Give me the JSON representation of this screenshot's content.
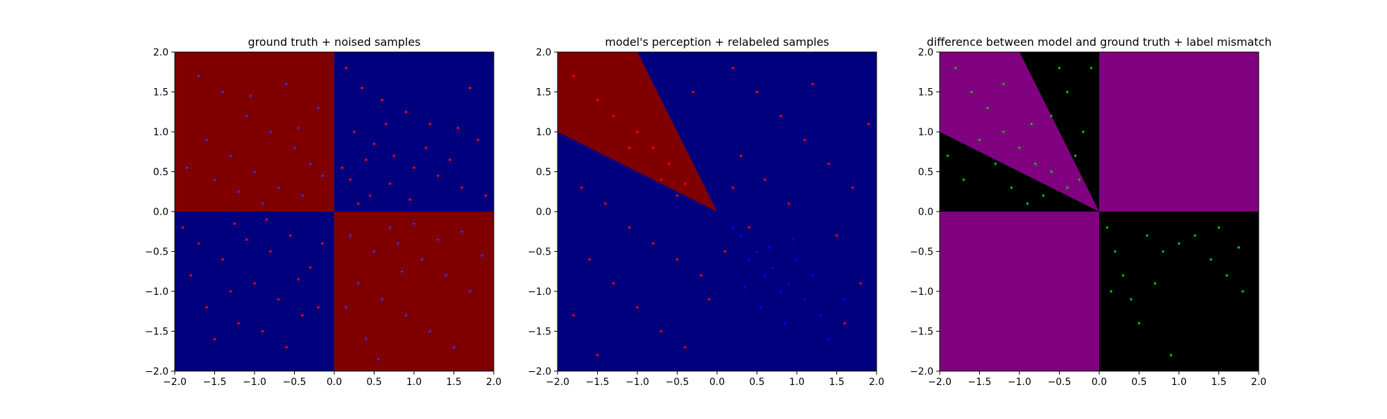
{
  "chart_data": [
    {
      "type": "scatter",
      "title": "ground truth + noised samples",
      "xlabel": "",
      "ylabel": "",
      "xlim": [
        -2.0,
        2.0
      ],
      "ylim": [
        -2.0,
        2.0
      ],
      "xticks": [
        "−2.0",
        "−1.5",
        "−1.0",
        "−0.5",
        "0.0",
        "0.5",
        "1.0",
        "1.5",
        "2.0"
      ],
      "yticks": [
        "−2.0",
        "−1.5",
        "−1.0",
        "−0.5",
        "0.0",
        "0.5",
        "1.0",
        "1.5",
        "2.0"
      ],
      "tick_values": [
        -2.0,
        -1.5,
        -1.0,
        -0.5,
        0.0,
        0.5,
        1.0,
        1.5,
        2.0
      ],
      "background_regions": [
        {
          "name": "quadrant-top-left",
          "polygon": [
            [
              -2,
              0
            ],
            [
              0,
              0
            ],
            [
              0,
              2
            ],
            [
              -2,
              2
            ]
          ],
          "color": "#800000"
        },
        {
          "name": "quadrant-top-right",
          "polygon": [
            [
              0,
              0
            ],
            [
              2,
              0
            ],
            [
              2,
              2
            ],
            [
              0,
              2
            ]
          ],
          "color": "#00007f"
        },
        {
          "name": "quadrant-bottom-left",
          "polygon": [
            [
              -2,
              -2
            ],
            [
              0,
              -2
            ],
            [
              0,
              0
            ],
            [
              -2,
              0
            ]
          ],
          "color": "#00007f"
        },
        {
          "name": "quadrant-bottom-right",
          "polygon": [
            [
              0,
              -2
            ],
            [
              2,
              -2
            ],
            [
              2,
              0
            ],
            [
              0,
              0
            ]
          ],
          "color": "#800000"
        }
      ],
      "series": [
        {
          "color": "#ff0000",
          "points": [
            [
              0.15,
              1.8
            ],
            [
              0.35,
              1.55
            ],
            [
              0.6,
              1.4
            ],
            [
              0.9,
              1.25
            ],
            [
              1.2,
              1.1
            ],
            [
              1.55,
              1.05
            ],
            [
              1.8,
              0.9
            ],
            [
              0.25,
              1.0
            ],
            [
              0.5,
              0.85
            ],
            [
              0.75,
              0.7
            ],
            [
              1.0,
              0.55
            ],
            [
              1.3,
              0.45
            ],
            [
              1.6,
              0.3
            ],
            [
              1.9,
              0.2
            ],
            [
              0.2,
              0.4
            ],
            [
              0.45,
              0.2
            ],
            [
              0.7,
              0.35
            ],
            [
              0.95,
              0.15
            ],
            [
              1.15,
              0.8
            ],
            [
              1.45,
              0.65
            ],
            [
              0.4,
              0.65
            ],
            [
              0.1,
              0.55
            ],
            [
              0.65,
              1.1
            ],
            [
              1.7,
              1.55
            ],
            [
              0.3,
              0.1
            ],
            [
              -1.7,
              -0.4
            ],
            [
              -1.4,
              -0.6
            ],
            [
              -1.1,
              -0.35
            ],
            [
              -0.8,
              -0.5
            ],
            [
              -0.55,
              -0.3
            ],
            [
              -0.3,
              -0.7
            ],
            [
              -1.6,
              -1.2
            ],
            [
              -1.3,
              -1.0
            ],
            [
              -1.0,
              -0.9
            ],
            [
              -0.7,
              -1.1
            ],
            [
              -0.4,
              -1.3
            ],
            [
              -1.5,
              -1.6
            ],
            [
              -1.2,
              -1.4
            ],
            [
              -0.9,
              -1.5
            ],
            [
              -0.6,
              -1.7
            ],
            [
              -0.2,
              -1.2
            ],
            [
              -1.8,
              -0.8
            ],
            [
              -0.15,
              -0.4
            ],
            [
              -0.45,
              -0.85
            ],
            [
              -1.9,
              -0.2
            ],
            [
              -1.25,
              -0.15
            ],
            [
              -0.85,
              -0.1
            ]
          ]
        },
        {
          "color": "#3030ff",
          "points": [
            [
              -1.7,
              1.7
            ],
            [
              -1.4,
              1.5
            ],
            [
              -1.1,
              1.2
            ],
            [
              -0.8,
              1.0
            ],
            [
              -0.5,
              0.8
            ],
            [
              -0.3,
              0.6
            ],
            [
              -1.6,
              0.9
            ],
            [
              -1.3,
              0.7
            ],
            [
              -1.0,
              0.5
            ],
            [
              -0.7,
              0.3
            ],
            [
              -0.4,
              0.2
            ],
            [
              -0.2,
              1.3
            ],
            [
              -0.6,
              1.6
            ],
            [
              -0.9,
              0.1
            ],
            [
              -1.2,
              0.25
            ],
            [
              -1.5,
              0.4
            ],
            [
              -1.85,
              0.55
            ],
            [
              -0.15,
              0.45
            ],
            [
              -0.45,
              1.05
            ],
            [
              -1.05,
              1.45
            ],
            [
              0.2,
              -0.3
            ],
            [
              0.5,
              -0.5
            ],
            [
              0.8,
              -0.4
            ],
            [
              1.1,
              -0.6
            ],
            [
              1.4,
              -0.8
            ],
            [
              1.7,
              -1.0
            ],
            [
              0.3,
              -0.9
            ],
            [
              0.6,
              -1.1
            ],
            [
              0.9,
              -1.3
            ],
            [
              1.2,
              -1.5
            ],
            [
              1.5,
              -1.7
            ],
            [
              0.4,
              -1.6
            ],
            [
              0.7,
              -0.2
            ],
            [
              1.0,
              -0.15
            ],
            [
              1.3,
              -0.35
            ],
            [
              1.6,
              -0.25
            ],
            [
              0.15,
              -1.2
            ],
            [
              0.85,
              -0.75
            ],
            [
              1.85,
              -0.55
            ],
            [
              0.55,
              -1.85
            ]
          ]
        }
      ]
    },
    {
      "type": "scatter",
      "title": "model's perception + relabeled samples",
      "xlabel": "",
      "ylabel": "",
      "xlim": [
        -2.0,
        2.0
      ],
      "ylim": [
        -2.0,
        2.0
      ],
      "xticks": [
        "−2.0",
        "−1.5",
        "−1.0",
        "−0.5",
        "0.0",
        "0.5",
        "1.0",
        "1.5",
        "2.0"
      ],
      "yticks": [
        "−2.0",
        "−1.5",
        "−1.0",
        "−0.5",
        "0.0",
        "0.5",
        "1.0",
        "1.5",
        "2.0"
      ],
      "tick_values": [
        -2.0,
        -1.5,
        -1.0,
        -0.5,
        0.0,
        0.5,
        1.0,
        1.5,
        2.0
      ],
      "background_regions": [
        {
          "name": "background",
          "polygon": [
            [
              -2,
              -2
            ],
            [
              2,
              -2
            ],
            [
              2,
              2
            ],
            [
              -2,
              2
            ]
          ],
          "color": "#00007f"
        },
        {
          "name": "wedge",
          "polygon": [
            [
              0,
              0
            ],
            [
              -2,
              1
            ],
            [
              -2,
              2
            ],
            [
              -1,
              2
            ]
          ],
          "color": "#800000"
        }
      ],
      "series": [
        {
          "color": "#ff0000",
          "points": [
            [
              -1.8,
              1.7
            ],
            [
              -1.5,
              1.4
            ],
            [
              -1.3,
              1.2
            ],
            [
              -1.0,
              1.0
            ],
            [
              -0.8,
              0.8
            ],
            [
              -0.6,
              0.6
            ],
            [
              -0.4,
              0.35
            ],
            [
              -0.7,
              0.4
            ],
            [
              -0.5,
              0.2
            ],
            [
              -1.1,
              0.8
            ],
            [
              0.2,
              1.8
            ],
            [
              0.5,
              1.5
            ],
            [
              0.8,
              1.2
            ],
            [
              1.1,
              0.9
            ],
            [
              1.4,
              0.6
            ],
            [
              1.7,
              0.3
            ],
            [
              0.3,
              0.7
            ],
            [
              0.6,
              0.4
            ],
            [
              0.9,
              0.1
            ],
            [
              1.2,
              1.6
            ],
            [
              -0.3,
              1.5
            ],
            [
              -1.7,
              0.3
            ],
            [
              -1.4,
              0.1
            ],
            [
              -1.1,
              -0.2
            ],
            [
              -0.8,
              -0.4
            ],
            [
              -0.5,
              -0.6
            ],
            [
              -0.2,
              -0.8
            ],
            [
              -1.6,
              -0.6
            ],
            [
              -1.3,
              -0.9
            ],
            [
              -1.0,
              -1.2
            ],
            [
              -0.7,
              -1.5
            ],
            [
              -0.4,
              -1.7
            ],
            [
              -1.8,
              -1.3
            ],
            [
              -1.5,
              -1.8
            ],
            [
              0.1,
              -0.5
            ],
            [
              0.4,
              -0.2
            ],
            [
              1.5,
              -0.3
            ],
            [
              1.8,
              -0.9
            ],
            [
              1.6,
              -1.4
            ],
            [
              -0.1,
              -1.1
            ],
            [
              0.2,
              0.3
            ],
            [
              1.9,
              1.1
            ]
          ]
        },
        {
          "color": "#0000ff",
          "points": [
            [
              0.3,
              -0.3
            ],
            [
              0.5,
              -0.5
            ],
            [
              0.7,
              -0.7
            ],
            [
              0.9,
              -0.9
            ],
            [
              1.1,
              -1.1
            ],
            [
              1.3,
              -1.3
            ],
            [
              0.4,
              -0.6
            ],
            [
              0.6,
              -0.8
            ],
            [
              0.8,
              -1.0
            ],
            [
              1.0,
              -0.6
            ],
            [
              1.2,
              -0.8
            ],
            [
              0.2,
              -0.2
            ],
            [
              0.55,
              -1.2
            ],
            [
              0.85,
              -1.4
            ],
            [
              1.4,
              -1.6
            ],
            [
              0.35,
              -0.95
            ],
            [
              0.95,
              -0.35
            ],
            [
              1.6,
              -1.1
            ],
            [
              0.65,
              -0.45
            ]
          ]
        }
      ]
    },
    {
      "type": "scatter",
      "title": "difference between model and ground truth + label mismatch",
      "xlabel": "",
      "ylabel": "",
      "xlim": [
        -2.0,
        2.0
      ],
      "ylim": [
        -2.0,
        2.0
      ],
      "xticks": [
        "−2.0",
        "−1.5",
        "−1.0",
        "−0.5",
        "0.0",
        "0.5",
        "1.0",
        "1.5",
        "2.0"
      ],
      "yticks": [
        "−2.0",
        "−1.5",
        "−1.0",
        "−0.5",
        "0.0",
        "0.5",
        "1.0",
        "1.5",
        "2.0"
      ],
      "tick_values": [
        -2.0,
        -1.5,
        -1.0,
        -0.5,
        0.0,
        0.5,
        1.0,
        1.5,
        2.0
      ],
      "background_regions": [
        {
          "name": "background",
          "polygon": [
            [
              -2,
              -2
            ],
            [
              2,
              -2
            ],
            [
              2,
              2
            ],
            [
              -2,
              2
            ]
          ],
          "color": "#000000"
        },
        {
          "name": "quadrant-top-right",
          "polygon": [
            [
              0,
              0
            ],
            [
              2,
              0
            ],
            [
              2,
              2
            ],
            [
              0,
              2
            ]
          ],
          "color": "#800080"
        },
        {
          "name": "quadrant-bottom-left",
          "polygon": [
            [
              -2,
              -2
            ],
            [
              0,
              -2
            ],
            [
              0,
              0
            ],
            [
              -2,
              0
            ]
          ],
          "color": "#800080"
        },
        {
          "name": "wedge",
          "polygon": [
            [
              0,
              0
            ],
            [
              -2,
              1
            ],
            [
              -2,
              2
            ],
            [
              -1,
              2
            ]
          ],
          "color": "#800080"
        }
      ],
      "series": [
        {
          "color": "#00c000",
          "points": [
            [
              -1.8,
              1.8
            ],
            [
              -1.6,
              1.5
            ],
            [
              -1.4,
              1.3
            ],
            [
              -1.2,
              1.0
            ],
            [
              -1.0,
              0.8
            ],
            [
              -0.8,
              0.6
            ],
            [
              -0.6,
              0.5
            ],
            [
              -0.4,
              0.3
            ],
            [
              -1.5,
              0.9
            ],
            [
              -1.3,
              0.6
            ],
            [
              -1.7,
              0.4
            ],
            [
              -1.9,
              0.7
            ],
            [
              -1.1,
              0.3
            ],
            [
              -0.9,
              0.1
            ],
            [
              -0.7,
              0.2
            ],
            [
              -0.6,
              1.2
            ],
            [
              -0.4,
              1.5
            ],
            [
              -0.2,
              1.0
            ],
            [
              -0.3,
              0.7
            ],
            [
              -0.1,
              1.8
            ],
            [
              -0.5,
              1.8
            ],
            [
              -1.2,
              1.6
            ],
            [
              -0.85,
              1.1
            ],
            [
              -0.25,
              0.4
            ],
            [
              0.1,
              -0.2
            ],
            [
              0.2,
              -0.5
            ],
            [
              0.3,
              -0.8
            ],
            [
              0.4,
              -1.1
            ],
            [
              0.5,
              -1.4
            ],
            [
              0.6,
              -0.3
            ],
            [
              0.8,
              -0.5
            ],
            [
              1.0,
              -0.4
            ],
            [
              1.2,
              -0.3
            ],
            [
              1.4,
              -0.6
            ],
            [
              1.6,
              -0.8
            ],
            [
              1.8,
              -1.0
            ],
            [
              0.9,
              -1.8
            ],
            [
              0.15,
              -1.0
            ],
            [
              1.5,
              -0.2
            ],
            [
              0.7,
              -0.9
            ],
            [
              1.75,
              -0.45
            ]
          ]
        }
      ]
    }
  ]
}
